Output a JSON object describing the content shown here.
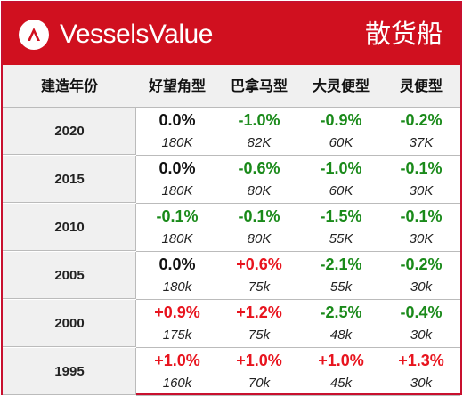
{
  "header": {
    "brand": "VesselsValue",
    "title": "散货船",
    "brand_color": "#d0101f"
  },
  "columns": [
    "建造年份",
    "好望角型",
    "巴拿马型",
    "大灵便型",
    "灵便型"
  ],
  "colors": {
    "decrease": "#1a8a1a",
    "increase": "#e8141e",
    "zero": "#111111",
    "header_bg": "#f0f0f0"
  },
  "rows": [
    {
      "year": "2020",
      "cells": [
        {
          "pct": "0.0%",
          "dwt": "180K",
          "trend": "zero"
        },
        {
          "pct": "-1.0%",
          "dwt": "82K",
          "trend": "neg"
        },
        {
          "pct": "-0.9%",
          "dwt": "60K",
          "trend": "neg"
        },
        {
          "pct": "-0.2%",
          "dwt": "37K",
          "trend": "neg"
        }
      ]
    },
    {
      "year": "2015",
      "cells": [
        {
          "pct": "0.0%",
          "dwt": "180K",
          "trend": "zero"
        },
        {
          "pct": "-0.6%",
          "dwt": "80K",
          "trend": "neg"
        },
        {
          "pct": "-1.0%",
          "dwt": "60K",
          "trend": "neg"
        },
        {
          "pct": "-0.1%",
          "dwt": "30K",
          "trend": "neg"
        }
      ]
    },
    {
      "year": "2010",
      "cells": [
        {
          "pct": "-0.1%",
          "dwt": "180K",
          "trend": "neg"
        },
        {
          "pct": "-0.1%",
          "dwt": "80K",
          "trend": "neg"
        },
        {
          "pct": "-1.5%",
          "dwt": "55K",
          "trend": "neg"
        },
        {
          "pct": "-0.1%",
          "dwt": "30K",
          "trend": "neg"
        }
      ]
    },
    {
      "year": "2005",
      "cells": [
        {
          "pct": "0.0%",
          "dwt": "180k",
          "trend": "zero"
        },
        {
          "pct": "+0.6%",
          "dwt": "75k",
          "trend": "pos"
        },
        {
          "pct": "-2.1%",
          "dwt": "55k",
          "trend": "neg"
        },
        {
          "pct": "-0.2%",
          "dwt": "30k",
          "trend": "neg"
        }
      ]
    },
    {
      "year": "2000",
      "cells": [
        {
          "pct": "+0.9%",
          "dwt": "175k",
          "trend": "pos"
        },
        {
          "pct": "+1.2%",
          "dwt": "75k",
          "trend": "pos"
        },
        {
          "pct": "-2.5%",
          "dwt": "48k",
          "trend": "neg"
        },
        {
          "pct": "-0.4%",
          "dwt": "30k",
          "trend": "neg"
        }
      ]
    },
    {
      "year": "1995",
      "cells": [
        {
          "pct": "+1.0%",
          "dwt": "160k",
          "trend": "pos"
        },
        {
          "pct": "+1.0%",
          "dwt": "70k",
          "trend": "pos"
        },
        {
          "pct": "+1.0%",
          "dwt": "45k",
          "trend": "pos"
        },
        {
          "pct": "+1.3%",
          "dwt": "30k",
          "trend": "pos"
        }
      ]
    }
  ]
}
